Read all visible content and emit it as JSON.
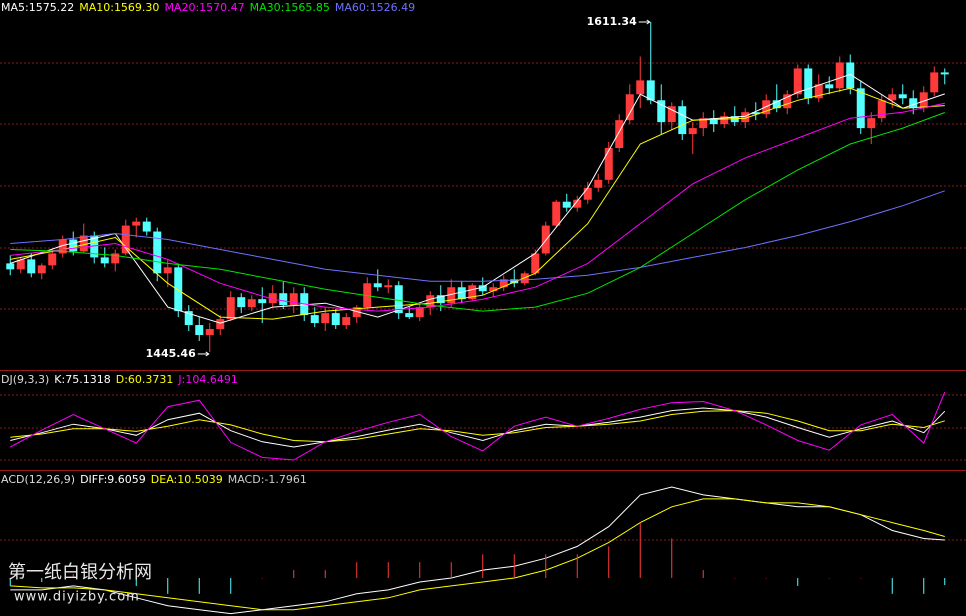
{
  "chart_data": [
    {
      "type": "candlestick",
      "up_color": "#ff3a3a",
      "down_color": "#54ffff",
      "ylim": [
        1436.4,
        1622.4
      ],
      "annotations": [
        1611.34,
        1445.46
      ],
      "ohlc": [
        [
          1490,
          1494,
          1484,
          1487
        ],
        [
          1487,
          1493,
          1485,
          1492
        ],
        [
          1492,
          1495,
          1483,
          1485
        ],
        [
          1485,
          1490,
          1482,
          1489
        ],
        [
          1489,
          1497,
          1487,
          1495
        ],
        [
          1495,
          1504,
          1493,
          1502
        ],
        [
          1502,
          1506,
          1494,
          1496
        ],
        [
          1496,
          1510,
          1495,
          1504
        ],
        [
          1504,
          1506,
          1490,
          1493
        ],
        [
          1493,
          1498,
          1488,
          1490
        ],
        [
          1490,
          1497,
          1486,
          1495
        ],
        [
          1495,
          1512,
          1494,
          1509
        ],
        [
          1509,
          1513,
          1503,
          1511
        ],
        [
          1511,
          1513,
          1504,
          1506
        ],
        [
          1506,
          1508,
          1481,
          1485
        ],
        [
          1485,
          1492,
          1478,
          1488
        ],
        [
          1488,
          1490,
          1463,
          1466
        ],
        [
          1466,
          1469,
          1456,
          1459
        ],
        [
          1459,
          1463,
          1451,
          1454
        ],
        [
          1454,
          1460,
          1445.46,
          1457
        ],
        [
          1457,
          1464,
          1454,
          1462
        ],
        [
          1462,
          1476,
          1461,
          1473
        ],
        [
          1473,
          1475,
          1465,
          1468
        ],
        [
          1468,
          1474,
          1466,
          1472
        ],
        [
          1472,
          1478,
          1460,
          1470
        ],
        [
          1470,
          1479,
          1468,
          1475
        ],
        [
          1475,
          1481,
          1467,
          1469
        ],
        [
          1469,
          1478,
          1465,
          1475
        ],
        [
          1475,
          1478,
          1461,
          1464
        ],
        [
          1464,
          1468,
          1458,
          1460
        ],
        [
          1460,
          1468,
          1456,
          1465
        ],
        [
          1465,
          1467,
          1457,
          1459
        ],
        [
          1459,
          1465,
          1457,
          1463
        ],
        [
          1463,
          1469,
          1460,
          1468
        ],
        [
          1468,
          1483,
          1466,
          1480
        ],
        [
          1480,
          1487,
          1476,
          1478
        ],
        [
          1478,
          1482,
          1475,
          1479
        ],
        [
          1479,
          1481,
          1462,
          1465
        ],
        [
          1465,
          1468,
          1462,
          1463
        ],
        [
          1463,
          1470,
          1461,
          1468
        ],
        [
          1468,
          1476,
          1464,
          1474
        ],
        [
          1474,
          1479,
          1466,
          1470
        ],
        [
          1470,
          1482,
          1468,
          1478
        ],
        [
          1478,
          1481,
          1470,
          1472
        ],
        [
          1472,
          1480,
          1471,
          1479
        ],
        [
          1479,
          1483,
          1474,
          1476
        ],
        [
          1476,
          1480,
          1473,
          1478
        ],
        [
          1478,
          1484,
          1476,
          1482
        ],
        [
          1482,
          1487,
          1478,
          1480
        ],
        [
          1480,
          1486,
          1479,
          1485
        ],
        [
          1485,
          1497,
          1484,
          1495
        ],
        [
          1495,
          1511,
          1494,
          1509
        ],
        [
          1509,
          1522,
          1508,
          1521
        ],
        [
          1521,
          1525,
          1516,
          1518
        ],
        [
          1518,
          1524,
          1516,
          1522
        ],
        [
          1522,
          1531,
          1520,
          1528
        ],
        [
          1528,
          1535,
          1526,
          1532
        ],
        [
          1532,
          1551,
          1530,
          1548
        ],
        [
          1548,
          1565,
          1546,
          1562
        ],
        [
          1562,
          1580,
          1560,
          1575
        ],
        [
          1575,
          1594,
          1568,
          1582
        ],
        [
          1582,
          1611.34,
          1570,
          1572
        ],
        [
          1572,
          1580,
          1555,
          1561
        ],
        [
          1561,
          1571,
          1557,
          1569
        ],
        [
          1569,
          1572,
          1552,
          1555
        ],
        [
          1555,
          1561,
          1545,
          1558
        ],
        [
          1558,
          1566,
          1554,
          1563
        ],
        [
          1563,
          1567,
          1556,
          1560
        ],
        [
          1560,
          1566,
          1558,
          1564
        ],
        [
          1564,
          1569,
          1559,
          1561
        ],
        [
          1561,
          1568,
          1558,
          1566
        ],
        [
          1566,
          1571,
          1562,
          1565
        ],
        [
          1565,
          1575,
          1563,
          1572
        ],
        [
          1572,
          1580,
          1566,
          1568
        ],
        [
          1568,
          1577,
          1565,
          1575
        ],
        [
          1575,
          1590,
          1573,
          1588
        ],
        [
          1588,
          1590,
          1570,
          1573
        ],
        [
          1573,
          1585,
          1571,
          1580
        ],
        [
          1580,
          1584,
          1575,
          1578
        ],
        [
          1578,
          1594,
          1576,
          1591
        ],
        [
          1591,
          1595,
          1575,
          1578
        ],
        [
          1578,
          1582,
          1555,
          1558
        ],
        [
          1558,
          1566,
          1550,
          1563
        ],
        [
          1563,
          1575,
          1561,
          1572
        ],
        [
          1572,
          1578,
          1568,
          1575
        ],
        [
          1575,
          1580,
          1570,
          1573
        ],
        [
          1573,
          1577,
          1565,
          1568
        ],
        [
          1568,
          1579,
          1566,
          1576
        ],
        [
          1576,
          1589,
          1574,
          1586
        ],
        [
          1586,
          1588,
          1580,
          1585
        ]
      ],
      "x": [
        0,
        5,
        10,
        15,
        20,
        25,
        30,
        35,
        40,
        45,
        50,
        55,
        60,
        65,
        70,
        75,
        80,
        85,
        89
      ],
      "series": [
        {
          "name": "MA5:1575.22",
          "color": "#ffffff",
          "values": [
            1490,
            1499,
            1505,
            1468,
            1460,
            1468,
            1470,
            1463,
            1472,
            1478,
            1495,
            1528,
            1575,
            1562,
            1564,
            1576,
            1585,
            1568,
            1575.22
          ]
        },
        {
          "name": "MA10:1569.30",
          "color": "#ffff00",
          "values": [
            1492,
            1497,
            1503,
            1480,
            1463,
            1462,
            1466,
            1468,
            1470,
            1474,
            1485,
            1510,
            1550,
            1562,
            1563,
            1572,
            1578,
            1568,
            1569.3
          ]
        },
        {
          "name": "MA20:1570.47",
          "color": "#ff00ff",
          "values": [
            1494,
            1497,
            1500,
            1492,
            1480,
            1472,
            1468,
            1466,
            1468,
            1472,
            1478,
            1490,
            1510,
            1530,
            1543,
            1553,
            1563,
            1566,
            1570.47
          ]
        },
        {
          "name": "MA30:1565.85",
          "color": "#00e600",
          "values": [
            1497,
            1496,
            1494,
            1490,
            1487,
            1482,
            1477,
            1473,
            1469,
            1466,
            1468,
            1475,
            1488,
            1505,
            1522,
            1537,
            1550,
            1558,
            1565.85
          ]
        },
        {
          "name": "MA60:1526.49",
          "color": "#7070ff",
          "values": [
            1500,
            1502,
            1505,
            1502,
            1497,
            1492,
            1487,
            1484,
            1481,
            1481,
            1482,
            1484,
            1488,
            1493,
            1498,
            1504,
            1511,
            1519,
            1526.49
          ]
        }
      ]
    },
    {
      "type": "line",
      "title": "DJ(9,3,3)",
      "ylim": [
        -15.4,
        135.4
      ],
      "x": [
        0,
        3,
        6,
        9,
        12,
        15,
        18,
        21,
        24,
        27,
        30,
        33,
        36,
        39,
        42,
        45,
        48,
        51,
        54,
        57,
        60,
        63,
        66,
        69,
        72,
        75,
        78,
        81,
        84,
        87,
        89
      ],
      "series": [
        {
          "name": "K:75.1318",
          "color": "#ffffff",
          "values": [
            30,
            42,
            55,
            48,
            38,
            62,
            72,
            45,
            28,
            20,
            28,
            36,
            46,
            55,
            42,
            30,
            45,
            55,
            52,
            58,
            66,
            76,
            80,
            76,
            66,
            50,
            35,
            48,
            60,
            42,
            75.1318
          ]
        },
        {
          "name": "D:60.3731",
          "color": "#ffff00",
          "values": [
            35,
            40,
            48,
            48,
            44,
            52,
            62,
            54,
            40,
            30,
            28,
            32,
            40,
            48,
            45,
            38,
            42,
            50,
            52,
            55,
            60,
            70,
            75,
            76,
            72,
            60,
            45,
            45,
            55,
            50,
            60.3731
          ]
        },
        {
          "name": "J:104.6491",
          "color": "#ff00ff",
          "values": [
            20,
            46,
            70,
            48,
            26,
            82,
            92,
            27,
            4,
            0,
            28,
            44,
            58,
            70,
            36,
            14,
            52,
            66,
            52,
            64,
            78,
            88,
            90,
            76,
            54,
            30,
            15,
            54,
            70,
            26,
            104.6491
          ]
        }
      ]
    },
    {
      "type": "line",
      "title": "ACD(12,26,9)",
      "ylim": [
        -9.6,
        26.8
      ],
      "x": [
        0,
        3,
        6,
        9,
        12,
        15,
        18,
        21,
        24,
        27,
        30,
        33,
        36,
        39,
        42,
        45,
        48,
        51,
        54,
        57,
        60,
        63,
        66,
        69,
        72,
        75,
        78,
        81,
        84,
        87,
        89
      ],
      "series": [
        {
          "name": "DIFF:9.6059",
          "color": "#ffffff",
          "values": [
            -3,
            -3,
            -2,
            -3,
            -5,
            -7,
            -8,
            -9,
            -8,
            -7,
            -6,
            -4,
            -3,
            -1,
            0,
            2,
            3,
            5,
            8,
            13,
            21,
            23,
            21,
            20,
            19,
            18,
            18,
            16,
            12,
            10,
            9.6059
          ]
        },
        {
          "name": "DEA:10.5039",
          "color": "#ffff00",
          "values": [
            -2,
            -2.5,
            -2.5,
            -3,
            -4,
            -5,
            -6,
            -7,
            -8,
            -8,
            -7,
            -6,
            -5,
            -3,
            -2,
            -1,
            0,
            2,
            5,
            9,
            14,
            18,
            20,
            20,
            19,
            19,
            18,
            16,
            14,
            12,
            10.5039
          ]
        },
        {
          "name": "MACD:-1.7961",
          "color": "#cccccc",
          "kind": "bar",
          "up_color": "#ff3a3a",
          "down_color": "#54ffff",
          "values": [
            -2,
            -1,
            1,
            0,
            -2,
            -4,
            -4,
            -4,
            0,
            2,
            2,
            4,
            4,
            4,
            4,
            6,
            6,
            6,
            6,
            8,
            14,
            10,
            2,
            0,
            0,
            -2,
            0,
            0,
            -4,
            -4,
            -1.7961
          ]
        }
      ]
    }
  ],
  "watermark": {
    "title": "第一纸白银分析网",
    "url": "www.diyizby.com"
  }
}
